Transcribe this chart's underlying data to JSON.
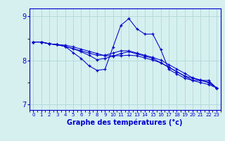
{
  "xlabel": "Graphe des températures (°c)",
  "x_values": [
    0,
    1,
    2,
    3,
    4,
    5,
    6,
    7,
    8,
    9,
    10,
    11,
    12,
    13,
    14,
    15,
    16,
    17,
    18,
    19,
    20,
    21,
    22,
    23
  ],
  "line1": [
    8.42,
    8.42,
    8.38,
    8.36,
    8.32,
    8.18,
    8.05,
    7.88,
    7.78,
    7.8,
    8.3,
    8.8,
    8.95,
    8.72,
    8.6,
    8.6,
    8.25,
    7.8,
    7.7,
    7.6,
    7.55,
    7.55,
    7.55,
    7.38
  ],
  "line2": [
    8.42,
    8.42,
    8.38,
    8.36,
    8.32,
    8.27,
    8.22,
    8.17,
    8.12,
    8.12,
    8.17,
    8.22,
    8.22,
    8.17,
    8.12,
    8.07,
    8.01,
    7.91,
    7.81,
    7.71,
    7.61,
    7.56,
    7.51,
    7.38
  ],
  "line3": [
    8.42,
    8.42,
    8.38,
    8.36,
    8.32,
    8.27,
    8.2,
    8.12,
    8.02,
    8.05,
    8.1,
    8.16,
    8.2,
    8.15,
    8.1,
    8.05,
    7.95,
    7.85,
    7.75,
    7.65,
    7.6,
    7.55,
    7.5,
    7.38
  ],
  "line4": [
    8.42,
    8.42,
    8.38,
    8.36,
    8.35,
    8.31,
    8.26,
    8.21,
    8.16,
    8.11,
    8.11,
    8.11,
    8.12,
    8.11,
    8.06,
    8.01,
    7.95,
    7.85,
    7.75,
    7.65,
    7.55,
    7.5,
    7.46,
    7.38
  ],
  "line_color": "#0000cc",
  "bg_color": "#d6f0f0",
  "grid_color": "#b0d8d8",
  "ylim": [
    6.88,
    9.18
  ],
  "yticks": [
    7,
    8,
    9
  ],
  "xlim": [
    -0.5,
    23.5
  ]
}
